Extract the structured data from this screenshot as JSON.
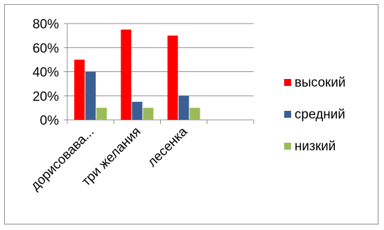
{
  "chart_data": {
    "type": "bar",
    "categories": [
      "дорисовава...",
      "три желания",
      "лесенка"
    ],
    "series": [
      {
        "name": "высокий",
        "values": [
          50,
          75,
          70
        ],
        "color": "#ff0000"
      },
      {
        "name": "средний",
        "values": [
          40,
          15,
          20
        ],
        "color": "#3a5f93"
      },
      {
        "name": "низкий",
        "values": [
          10,
          10,
          10
        ],
        "color": "#9bbb59"
      }
    ],
    "ylim": [
      0,
      80
    ],
    "yticks": [
      0,
      20,
      40,
      60,
      80
    ],
    "ytick_labels": [
      "0%",
      "20%",
      "40%",
      "60%",
      "80%"
    ],
    "grid": true,
    "legend_position": "right",
    "title": "",
    "xlabel": "",
    "ylabel": ""
  }
}
